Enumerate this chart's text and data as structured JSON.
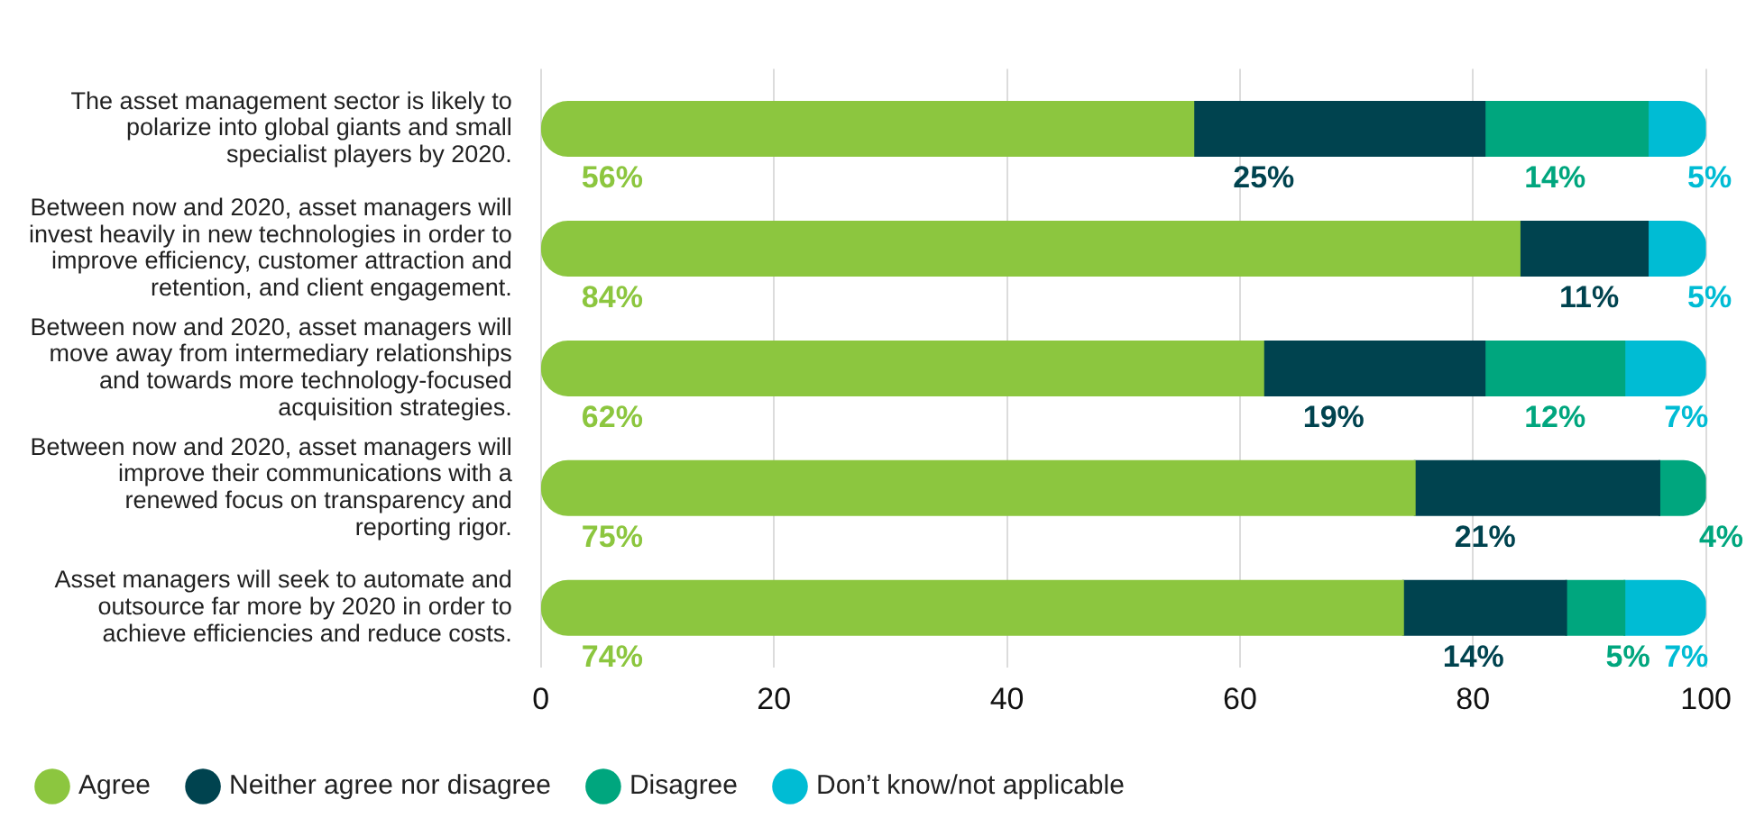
{
  "chart_data": {
    "type": "bar",
    "orientation": "horizontal",
    "stacked": true,
    "categories": [
      "The asset management sector is likely to polarize into global giants and small specialist players by 2020.",
      "Between now and 2020, asset managers will invest heavily in new technologies in order to improve efficiency, customer attraction and retention, and client engagement.",
      "Between now and 2020, asset managers will move away from intermediary relationships and towards more technology-focused acquisition strategies.",
      "Between now and 2020, asset managers will improve their communications with a renewed focus on transparency and reporting rigor.",
      "Asset managers will seek to automate and outsource far more by 2020 in order to achieve efficiencies and reduce costs."
    ],
    "series": [
      {
        "name": "Agree",
        "color": "#8cc63f",
        "values": [
          56,
          84,
          62,
          75,
          74
        ],
        "value_labels": [
          "56%",
          "84%",
          "62%",
          "75%",
          "74%"
        ]
      },
      {
        "name": "Neither agree nor disagree",
        "color": "#00434f",
        "values": [
          25,
          11,
          19,
          21,
          14
        ],
        "value_labels": [
          "25%",
          "11%",
          "19%",
          "21%",
          "14%"
        ]
      },
      {
        "name": "Disagree",
        "color": "#00a67e",
        "values": [
          14,
          null,
          12,
          4,
          5
        ],
        "value_labels": [
          "14%",
          null,
          "12%",
          "4%",
          "5%"
        ]
      },
      {
        "name": "Don’t know/not applicable",
        "color": "#00bcd4",
        "values": [
          5,
          5,
          7,
          null,
          7
        ],
        "value_labels": [
          "5%",
          "5%",
          "7%",
          null,
          "7%"
        ]
      }
    ],
    "xlim": [
      0,
      100
    ],
    "xticks": [
      0,
      20,
      40,
      60,
      80,
      100
    ],
    "grid": "x",
    "legend": "bottom left"
  }
}
